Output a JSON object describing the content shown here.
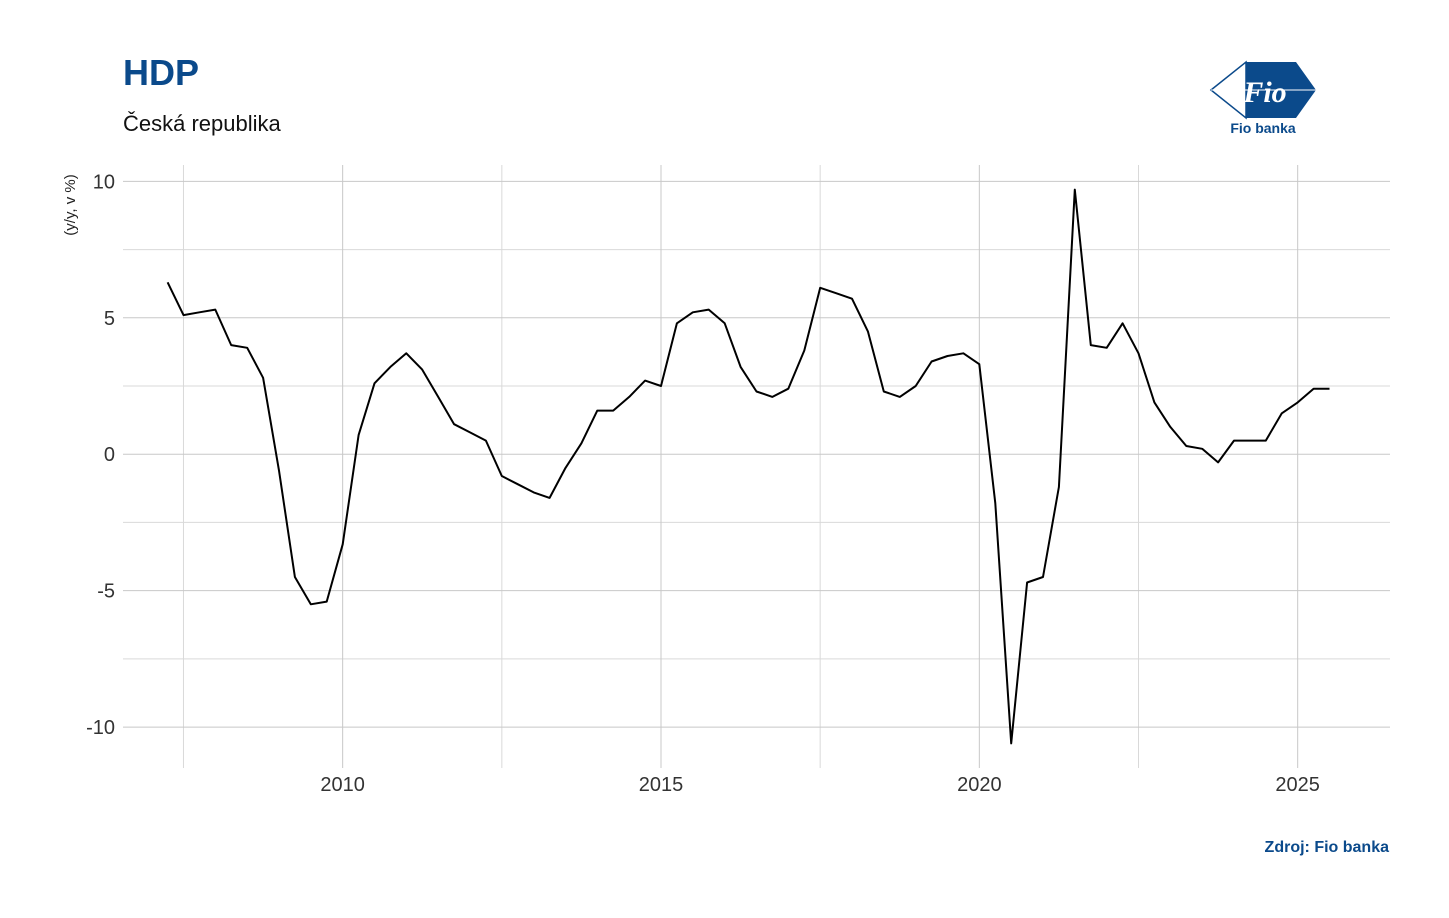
{
  "header": {
    "title": "HDP",
    "subtitle": "Česká republika"
  },
  "logo": {
    "icon": "fio-flag-logo",
    "mark_text": "Fio",
    "caption": "Fio banka",
    "color": "#0b4a8b"
  },
  "footer": {
    "source": "Zdroj: Fio banka"
  },
  "chart_data": {
    "type": "line",
    "title": "HDP",
    "subtitle": "Česká republika",
    "xlabel": "",
    "ylabel": "(y/y, v %)",
    "xlim": [
      2006.55,
      2026.45
    ],
    "ylim": [
      -11.5,
      10.6
    ],
    "x_ticks": [
      2010,
      2015,
      2020,
      2025
    ],
    "y_ticks": [
      -10,
      -5,
      0,
      5,
      10
    ],
    "grid": true,
    "legend": "none",
    "line_color": "#000000",
    "series": [
      {
        "x": [
          2007.25,
          2007.5,
          2007.75,
          2008.0,
          2008.25,
          2008.5,
          2008.75,
          2009.0,
          2009.25,
          2009.5,
          2009.75,
          2010.0,
          2010.25,
          2010.5,
          2010.75,
          2011.0,
          2011.25,
          2011.5,
          2011.75,
          2012.0,
          2012.25,
          2012.5,
          2012.75,
          2013.0,
          2013.25,
          2013.5,
          2013.75,
          2014.0,
          2014.25,
          2014.5,
          2014.75,
          2015.0,
          2015.25,
          2015.5,
          2015.75,
          2016.0,
          2016.25,
          2016.5,
          2016.75,
          2017.0,
          2017.25,
          2017.5,
          2017.75,
          2018.0,
          2018.25,
          2018.5,
          2018.75,
          2019.0,
          2019.25,
          2019.5,
          2019.75,
          2020.0,
          2020.25,
          2020.5,
          2020.75,
          2021.0,
          2021.25,
          2021.5,
          2021.75,
          2022.0,
          2022.25,
          2022.5,
          2022.75,
          2023.0,
          2023.25,
          2023.5,
          2023.75,
          2024.0,
          2024.25,
          2024.5,
          2024.75,
          2025.0,
          2025.25,
          2025.5
        ],
        "values": [
          6.3,
          5.1,
          5.2,
          5.3,
          4.0,
          3.9,
          2.8,
          -0.6,
          -4.5,
          -5.5,
          -5.4,
          -3.3,
          0.7,
          2.6,
          3.2,
          3.7,
          3.1,
          2.1,
          1.1,
          0.8,
          0.5,
          -0.8,
          -1.1,
          -1.4,
          -1.6,
          -0.5,
          0.4,
          1.6,
          1.6,
          2.1,
          2.7,
          2.5,
          4.8,
          5.2,
          5.3,
          4.8,
          3.2,
          2.3,
          2.1,
          2.4,
          3.8,
          6.1,
          5.9,
          5.7,
          4.5,
          2.3,
          2.1,
          2.5,
          3.4,
          3.6,
          3.7,
          3.3,
          -1.8,
          -10.6,
          -4.7,
          -4.5,
          -1.2,
          9.7,
          4.0,
          3.9,
          4.8,
          3.7,
          1.9,
          1.0,
          0.3,
          0.2,
          -0.3,
          0.5,
          0.5,
          0.5,
          1.5,
          1.9,
          2.4,
          2.4
        ]
      }
    ]
  }
}
